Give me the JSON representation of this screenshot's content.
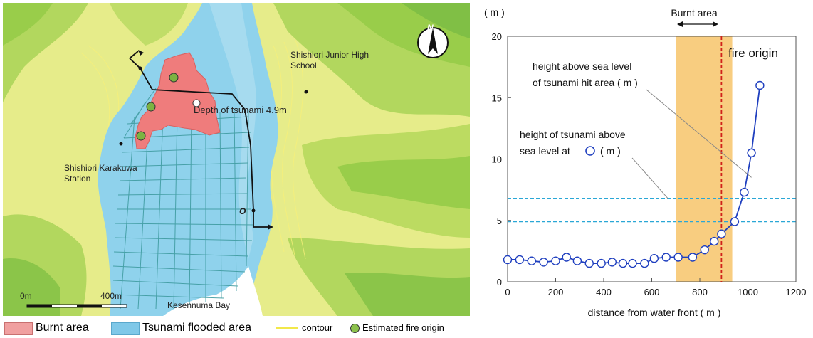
{
  "map": {
    "labels": {
      "north": "N",
      "junior_high": "Shishiori Junior High\nSchool",
      "depth": "Depth of tsunami 4.9m",
      "station": "Shishiori Karakuwa\nStation",
      "point_o": "O",
      "bay": "Kesennuma Bay",
      "scale_start": "0m",
      "scale_end": "400m"
    },
    "legend": [
      {
        "label": "Burnt area",
        "color": "#f0a0a0"
      },
      {
        "label": "Tsunami flooded area",
        "color": "#7fc8e8"
      },
      {
        "label": "contour",
        "color": "#f2e84a"
      },
      {
        "label": "Estimated fire origin",
        "color": "#8cc14c"
      }
    ],
    "colors": {
      "background": "#e6ec8a",
      "flood": "#8fd2ec",
      "burnt": "#ef7c7c",
      "street": "#3f9ba0",
      "sea": "#ffffff",
      "green_dark": "#9acd4a",
      "fire_origin": "#7cb342"
    }
  },
  "chart_data": {
    "type": "line",
    "ylabel_unit": "( m )",
    "xlabel": "distance from water front ( m )",
    "xlim": [
      0,
      1200
    ],
    "ylim": [
      0,
      20
    ],
    "x_ticks": [
      0,
      200,
      400,
      600,
      800,
      1000,
      1200
    ],
    "y_ticks": [
      0,
      5,
      10,
      15,
      20
    ],
    "grid": false,
    "series": [
      {
        "x": [
          0,
          50,
          100,
          150,
          200,
          245,
          290,
          340,
          390,
          435,
          480,
          520,
          570,
          610,
          660,
          710,
          770,
          820,
          860,
          890,
          945,
          985,
          1015,
          1050
        ],
        "y": [
          1.8,
          1.8,
          1.7,
          1.6,
          1.7,
          2.0,
          1.7,
          1.5,
          1.5,
          1.6,
          1.5,
          1.5,
          1.5,
          1.9,
          2.0,
          2.0,
          2.0,
          2.6,
          3.3,
          3.9,
          4.9,
          7.3,
          10.5,
          16.0
        ],
        "color": "#1f3fbf"
      }
    ],
    "burnt_area": {
      "label": "Burnt area",
      "x_range": [
        700,
        935
      ],
      "color": "#f7c46a"
    },
    "fire_origin": {
      "label": "fire origin",
      "x": 890,
      "color": "#d0211a"
    },
    "reference_lines": [
      {
        "y": 6.8,
        "color": "#2aa7d6"
      },
      {
        "y": 4.9,
        "color": "#2aa7d6"
      }
    ],
    "annotations": {
      "hit_area_line1": "height above sea level",
      "hit_area_line2": "of tsunami hit area ( m )",
      "tsunami_line1": "height of tsunami above",
      "tsunami_line2": "sea level at",
      "tsunami_line2_unit": "( m )"
    }
  }
}
